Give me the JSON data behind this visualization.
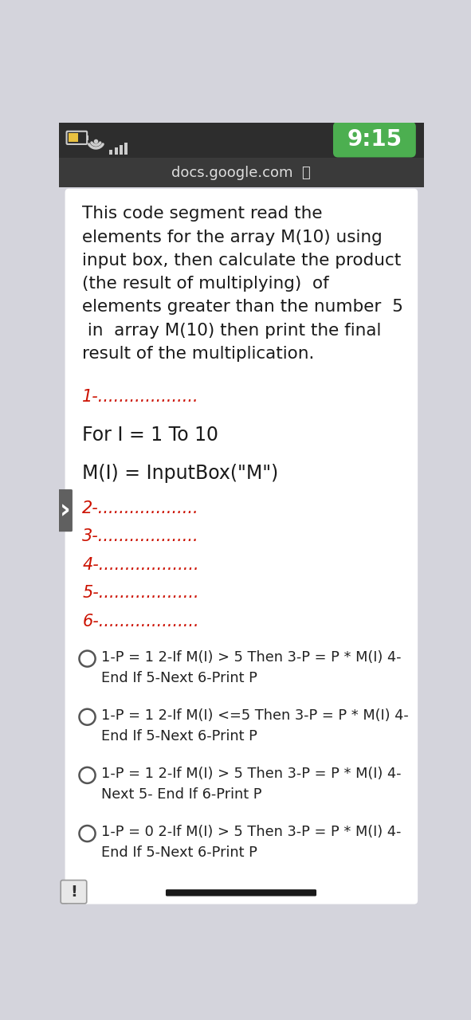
{
  "bg_color": "#d4d4dc",
  "statusbar_bg": "#2d2d2d",
  "statusbar_time": "9:15",
  "statusbar_time_bg": "#4caf50",
  "url_bar_bg": "#3a3a3a",
  "url_text": "docs.google.com",
  "card_bg": "#ffffff",
  "question_lines": [
    "This code segment read the",
    "elements for the array M(10) using",
    "input box, then calculate the product",
    "(the result of multiplying)  of",
    "elements greater than the number  5",
    " in  array M(10) then print the final",
    "result of the multiplication."
  ],
  "dot_lines_red": [
    "1-...................",
    "2-...................",
    "3-...................",
    "4-...................",
    "5-...................",
    "6-..................."
  ],
  "code_line1": "For I = 1 To 10",
  "code_line2": "M(I) = InputBox(\"M\")",
  "options": [
    "1-P = 1 2-If M(I) > 5 Then 3-P = P * M(I) 4-\nEnd If 5-Next 6-Print P",
    "1-P = 1 2-If M(I) <=5 Then 3-P = P * M(I) 4-\nEnd If 5-Next 6-Print P",
    "1-P = 1 2-If M(I) > 5 Then 3-P = P * M(I) 4-\nNext 5- End If 6-Print P",
    "1-P = 0 2-If M(I) > 5 Then 3-P = P * M(I) 4-\nEnd If 5-Next 6-Print P"
  ],
  "red_color": "#cc1100",
  "black_color": "#1a1a1a",
  "text_color": "#222222",
  "icon_color": "#cccccc",
  "battery_fill": "#e8c040",
  "arrow_bg": "#606060",
  "bottom_bar": "#1a1a1a"
}
